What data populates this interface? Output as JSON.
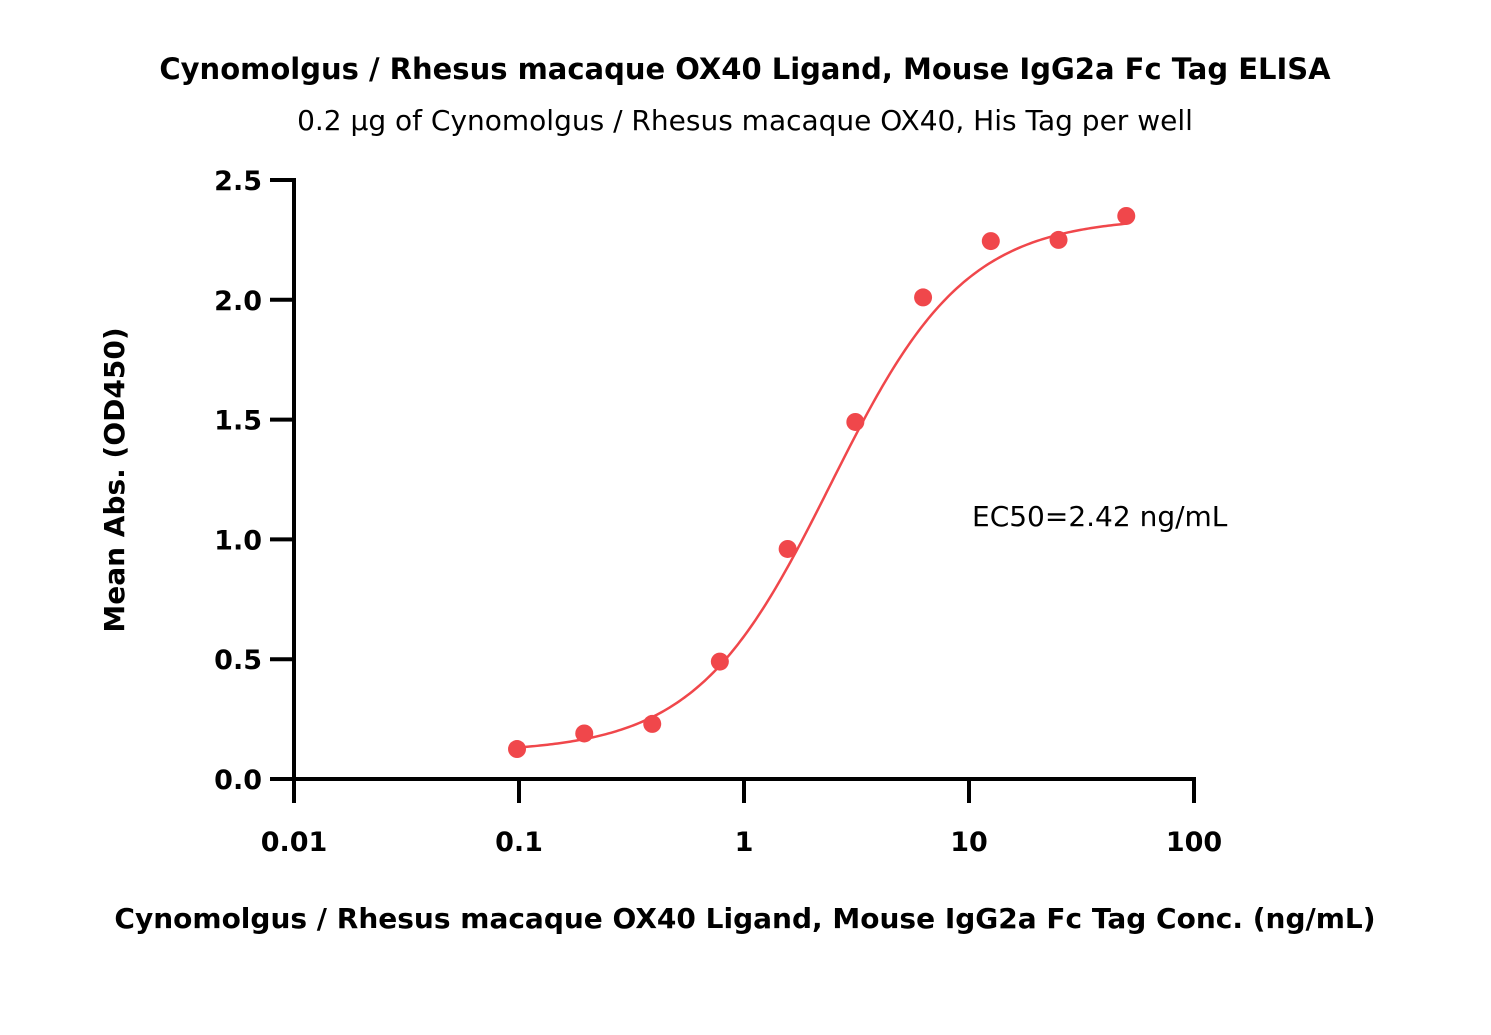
{
  "chart_data": {
    "type": "scatter",
    "title": "Cynomolgus / Rhesus macaque OX40 Ligand, Mouse IgG2a Fc Tag ELISA",
    "subtitle": "0.2 µg of Cynomolgus / Rhesus macaque OX40, His Tag per well",
    "xlabel": "Cynomolgus / Rhesus macaque OX40 Ligand, Mouse IgG2a Fc Tag Conc. (ng/mL)",
    "ylabel": "Mean Abs. (OD450)",
    "x_scale": "log",
    "xlim": [
      0.01,
      100
    ],
    "ylim": [
      0,
      2.5
    ],
    "x_ticks": [
      "0.01",
      "0.1",
      "1",
      "10",
      "100"
    ],
    "y_ticks": [
      "0.0",
      "0.5",
      "1.0",
      "1.5",
      "2.0",
      "2.5"
    ],
    "grid": false,
    "color": "#f0474b",
    "annotation": "EC50=2.42 ng/mL",
    "series": [
      {
        "x": [
          0.098,
          0.195,
          0.391,
          0.781,
          1.563,
          3.125,
          6.25,
          12.5,
          25,
          50
        ],
        "y": [
          0.125,
          0.19,
          0.23,
          0.49,
          0.96,
          1.49,
          2.01,
          2.245,
          2.25,
          2.35
        ]
      }
    ]
  }
}
